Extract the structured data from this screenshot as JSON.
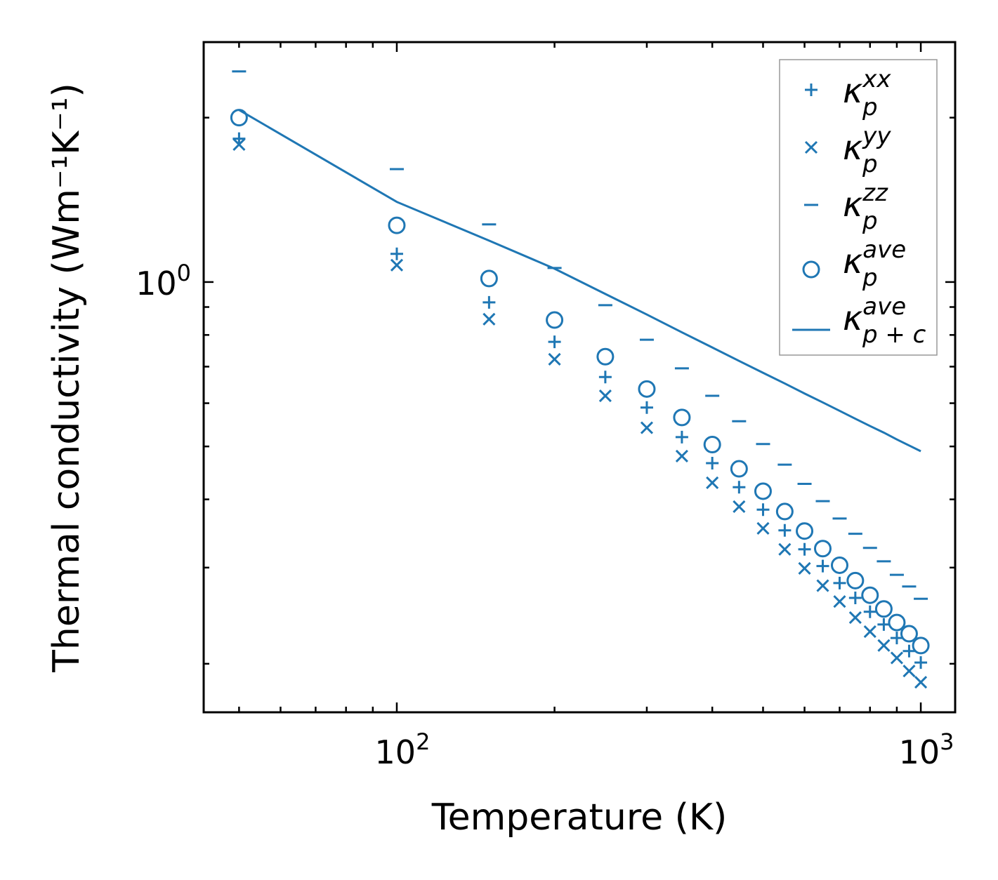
{
  "chart_data": {
    "type": "scatter",
    "xscale": "log",
    "yscale": "log",
    "xlabel": "Temperature (K)",
    "ylabel": "Thermal conductivity (Wm⁻¹K⁻¹)",
    "xlim": [
      42.8,
      1163
    ],
    "ylim": [
      0.163,
      2.75
    ],
    "grid": false,
    "legend_position": "top-right",
    "color": "#1f77b4",
    "x_ticks": [
      {
        "value": 100,
        "base": "10",
        "exp": "2"
      },
      {
        "value": 1000,
        "base": "10",
        "exp": "3"
      }
    ],
    "y_ticks": [
      {
        "value": 1,
        "base": "10",
        "exp": "0"
      }
    ],
    "x": [
      50,
      100,
      150,
      200,
      250,
      300,
      350,
      400,
      450,
      500,
      550,
      600,
      650,
      700,
      750,
      800,
      850,
      900,
      950,
      1000
    ],
    "series": [
      {
        "name": "kappa_p_xx",
        "label": {
          "main": "κ",
          "sub": "p",
          "sup": "xx"
        },
        "marker": "plus",
        "values": [
          1.83,
          1.126,
          0.918,
          0.777,
          0.67,
          0.589,
          0.52,
          0.466,
          0.421,
          0.383,
          0.351,
          0.324,
          0.302,
          0.281,
          0.264,
          0.249,
          0.236,
          0.223,
          0.211,
          0.201
        ]
      },
      {
        "name": "kappa_p_yy",
        "label": {
          "main": "κ",
          "sub": "p",
          "sup": "yy"
        },
        "marker": "x",
        "values": [
          1.786,
          1.074,
          0.855,
          0.722,
          0.619,
          0.541,
          0.48,
          0.429,
          0.388,
          0.354,
          0.324,
          0.299,
          0.278,
          0.26,
          0.243,
          0.229,
          0.216,
          0.205,
          0.194,
          0.185
        ]
      },
      {
        "name": "kappa_p_zz",
        "label": {
          "main": "κ",
          "sub": "p",
          "sup": "zz"
        },
        "marker": "hline",
        "values": [
          2.43,
          1.61,
          1.275,
          1.061,
          0.907,
          0.784,
          0.695,
          0.619,
          0.556,
          0.505,
          0.463,
          0.427,
          0.397,
          0.369,
          0.346,
          0.326,
          0.308,
          0.291,
          0.277,
          0.263
        ]
      },
      {
        "name": "kappa_p_ave",
        "label": {
          "main": "κ",
          "sub": "p",
          "sup": "ave"
        },
        "marker": "circle",
        "values": [
          2.0,
          1.27,
          1.015,
          0.852,
          0.73,
          0.637,
          0.565,
          0.504,
          0.455,
          0.414,
          0.38,
          0.35,
          0.325,
          0.303,
          0.284,
          0.267,
          0.252,
          0.238,
          0.227,
          0.216
        ]
      },
      {
        "name": "kappa_pc_ave",
        "label": {
          "main": "κ",
          "sub": "p + c",
          "sup": "ave"
        },
        "marker": "line",
        "values": [
          2.066,
          1.402,
          1.191,
          1.058,
          0.951,
          0.872,
          0.809,
          0.759,
          0.717,
          0.682,
          0.652,
          0.625,
          0.602,
          0.581,
          0.562,
          0.545,
          0.53,
          0.515,
          0.502,
          0.49
        ]
      }
    ]
  }
}
